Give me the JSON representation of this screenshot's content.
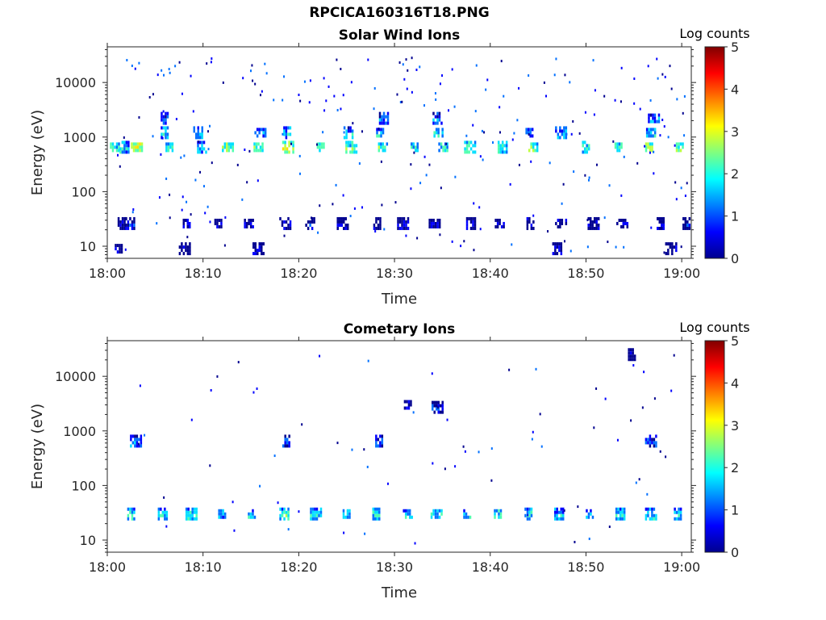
{
  "figure": {
    "title": "RPCICA160316T18.PNG"
  },
  "colormap": [
    "#00008f",
    "#0000ff",
    "#0070ff",
    "#00dfff",
    "#50ffaf",
    "#bfff40",
    "#ffdf00",
    "#ff7000",
    "#ff0000",
    "#800000"
  ],
  "chart_data": [
    {
      "type": "heatmap",
      "title": "Solar Wind Ions",
      "xlabel": "Time",
      "ylabel": "Energy (eV)",
      "x_tick_labels": [
        "18:00",
        "18:10",
        "18:20",
        "18:30",
        "18:40",
        "18:50",
        "19:00"
      ],
      "x_tick_minutes": [
        0,
        10,
        20,
        30,
        40,
        50,
        60
      ],
      "xlim_minutes": [
        0,
        61
      ],
      "y_scale": "log",
      "y_tick_labels": [
        "10",
        "100",
        "1000",
        "10000"
      ],
      "y_tick_values": [
        10,
        100,
        1000,
        10000
      ],
      "ylim": [
        6,
        45000
      ],
      "colorbar": {
        "title": "Log counts",
        "ticks": [
          "0",
          "1",
          "2",
          "3",
          "4",
          "5"
        ],
        "range": [
          0,
          5
        ]
      },
      "cells": [
        [
          0.8,
          650,
          2.0
        ],
        [
          1.8,
          650,
          1.8
        ],
        [
          3.1,
          650,
          2.9
        ],
        [
          6.5,
          650,
          2.1
        ],
        [
          9.9,
          650,
          1.7
        ],
        [
          12.6,
          650,
          2.4
        ],
        [
          15.8,
          650,
          2.3
        ],
        [
          18.9,
          650,
          2.8
        ],
        [
          22.3,
          650,
          2.5
        ],
        [
          25.5,
          650,
          2.3
        ],
        [
          28.8,
          650,
          2.2
        ],
        [
          32.1,
          650,
          2.1
        ],
        [
          35.1,
          650,
          2.0
        ],
        [
          37.9,
          650,
          2.2
        ],
        [
          41.3,
          650,
          2.1
        ],
        [
          44.5,
          650,
          2.3
        ],
        [
          50.0,
          650,
          1.9
        ],
        [
          53.4,
          650,
          2.2
        ],
        [
          56.6,
          650,
          2.6
        ],
        [
          59.8,
          650,
          2.3
        ],
        [
          6.0,
          1200,
          1.6
        ],
        [
          9.5,
          1200,
          1.5
        ],
        [
          16.0,
          1200,
          1.5
        ],
        [
          18.8,
          1200,
          1.7
        ],
        [
          25.2,
          1200,
          1.6
        ],
        [
          28.5,
          1200,
          1.7
        ],
        [
          34.6,
          1200,
          1.8
        ],
        [
          44.1,
          1200,
          1.4
        ],
        [
          47.4,
          1200,
          1.6
        ],
        [
          56.8,
          1200,
          1.7
        ],
        [
          6.0,
          2200,
          1.2
        ],
        [
          28.9,
          2200,
          1.3
        ],
        [
          34.5,
          2200,
          1.2
        ],
        [
          57.1,
          2200,
          1.3
        ],
        [
          1.5,
          26,
          0.4
        ],
        [
          2.5,
          26,
          0.5
        ],
        [
          8.3,
          26,
          0.6
        ],
        [
          11.6,
          26,
          0.4
        ],
        [
          14.8,
          26,
          0.5
        ],
        [
          18.6,
          26,
          0.6
        ],
        [
          21.2,
          26,
          0.5
        ],
        [
          24.6,
          26,
          0.4
        ],
        [
          28.2,
          26,
          0.5
        ],
        [
          30.9,
          26,
          0.5
        ],
        [
          34.2,
          26,
          0.4
        ],
        [
          38.0,
          26,
          0.5
        ],
        [
          41.0,
          26,
          0.4
        ],
        [
          44.2,
          26,
          0.6
        ],
        [
          47.4,
          26,
          0.5
        ],
        [
          50.8,
          26,
          0.4
        ],
        [
          53.8,
          26,
          0.5
        ],
        [
          57.8,
          26,
          0.4
        ],
        [
          60.5,
          26,
          0.5
        ],
        [
          1.2,
          9,
          0.4
        ],
        [
          8.1,
          9,
          0.4
        ],
        [
          15.8,
          9,
          0.4
        ],
        [
          47.0,
          9,
          0.4
        ],
        [
          58.9,
          9,
          0.4
        ]
      ],
      "scatter_counts": {
        "low": 60,
        "mid": 90,
        "high": 110
      }
    },
    {
      "type": "heatmap",
      "title": "Cometary Ions",
      "xlabel": "Time",
      "ylabel": "Energy (eV)",
      "x_tick_labels": [
        "18:00",
        "18:10",
        "18:20",
        "18:30",
        "18:40",
        "18:50",
        "19:00"
      ],
      "x_tick_minutes": [
        0,
        10,
        20,
        30,
        40,
        50,
        60
      ],
      "xlim_minutes": [
        0,
        61
      ],
      "y_scale": "log",
      "y_tick_labels": [
        "10",
        "100",
        "1000",
        "10000"
      ],
      "y_tick_values": [
        10,
        100,
        1000,
        10000
      ],
      "ylim": [
        6,
        45000
      ],
      "colorbar": {
        "title": "Log counts",
        "ticks": [
          "0",
          "1",
          "2",
          "3",
          "4",
          "5"
        ],
        "range": [
          0,
          5
        ]
      },
      "cells": [
        [
          2.5,
          30,
          1.9
        ],
        [
          5.8,
          30,
          1.7
        ],
        [
          8.8,
          30,
          2.0
        ],
        [
          12.0,
          30,
          1.6
        ],
        [
          15.1,
          30,
          1.9
        ],
        [
          18.5,
          30,
          2.1
        ],
        [
          21.8,
          30,
          1.8
        ],
        [
          25.0,
          30,
          2.0
        ],
        [
          28.1,
          30,
          1.9
        ],
        [
          31.4,
          30,
          1.7
        ],
        [
          34.4,
          30,
          2.1
        ],
        [
          37.6,
          30,
          1.8
        ],
        [
          40.8,
          30,
          2.0
        ],
        [
          44.0,
          30,
          1.9
        ],
        [
          47.2,
          30,
          1.7
        ],
        [
          50.4,
          30,
          1.6
        ],
        [
          53.6,
          30,
          1.9
        ],
        [
          56.8,
          30,
          1.8
        ],
        [
          59.6,
          30,
          1.7
        ],
        [
          3.0,
          650,
          1.3
        ],
        [
          18.7,
          650,
          1.2
        ],
        [
          28.4,
          650,
          1.0
        ],
        [
          56.8,
          650,
          1.0
        ],
        [
          34.5,
          2700,
          0.8
        ],
        [
          31.4,
          3000,
          0.5
        ],
        [
          54.8,
          25000,
          0.4
        ]
      ],
      "scatter_counts": {
        "low": 20,
        "mid": 30,
        "high": 20
      }
    }
  ]
}
